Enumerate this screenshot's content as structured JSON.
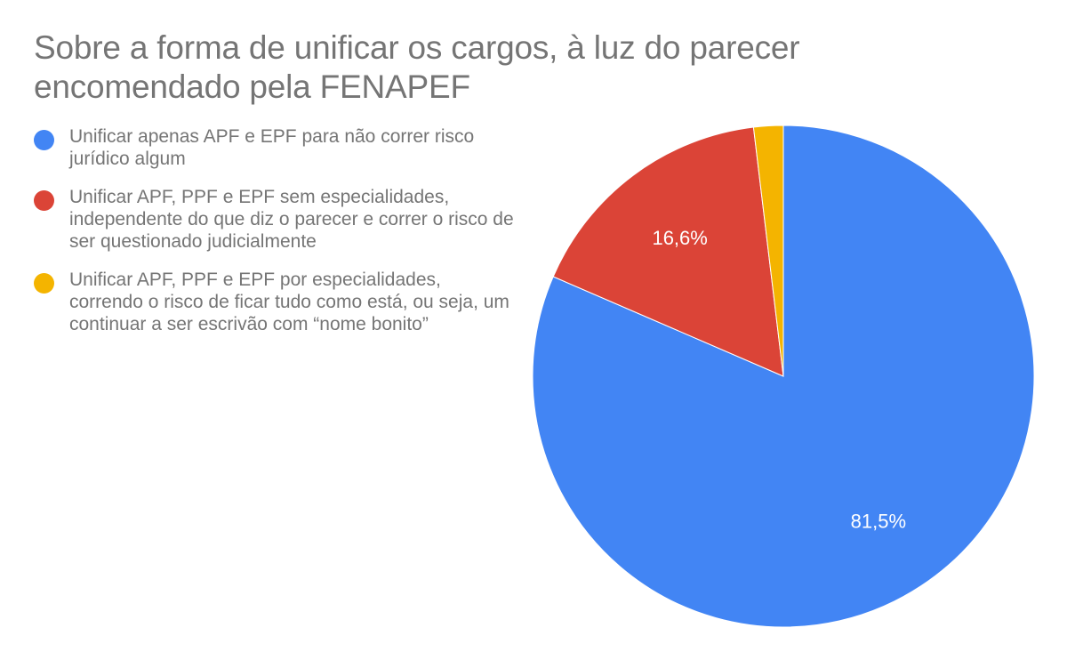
{
  "chart_data": {
    "type": "pie",
    "title": "Sobre a forma de unificar os cargos, à luz do parecer encomendado pela FENAPEF",
    "legend_position": "left",
    "slices": [
      {
        "name": "Unificar apenas APF e EPF para não correr risco jurídico algum",
        "value": 81.5,
        "label": "81,5%",
        "color": "#4285f4"
      },
      {
        "name": "Unificar APF, PPF e EPF sem especialidades, independente do que diz o parecer e correr o risco de ser questionado judicialmente",
        "value": 16.6,
        "label": "16,6%",
        "color": "#db4437"
      },
      {
        "name": "Unificar APF, PPF e EPF por especialidades, correndo o risco de ficar tudo como está, ou seja, um continuar a ser escrivão com “nome bonito”",
        "value": 1.9,
        "label": "",
        "color": "#f4b400"
      }
    ]
  }
}
